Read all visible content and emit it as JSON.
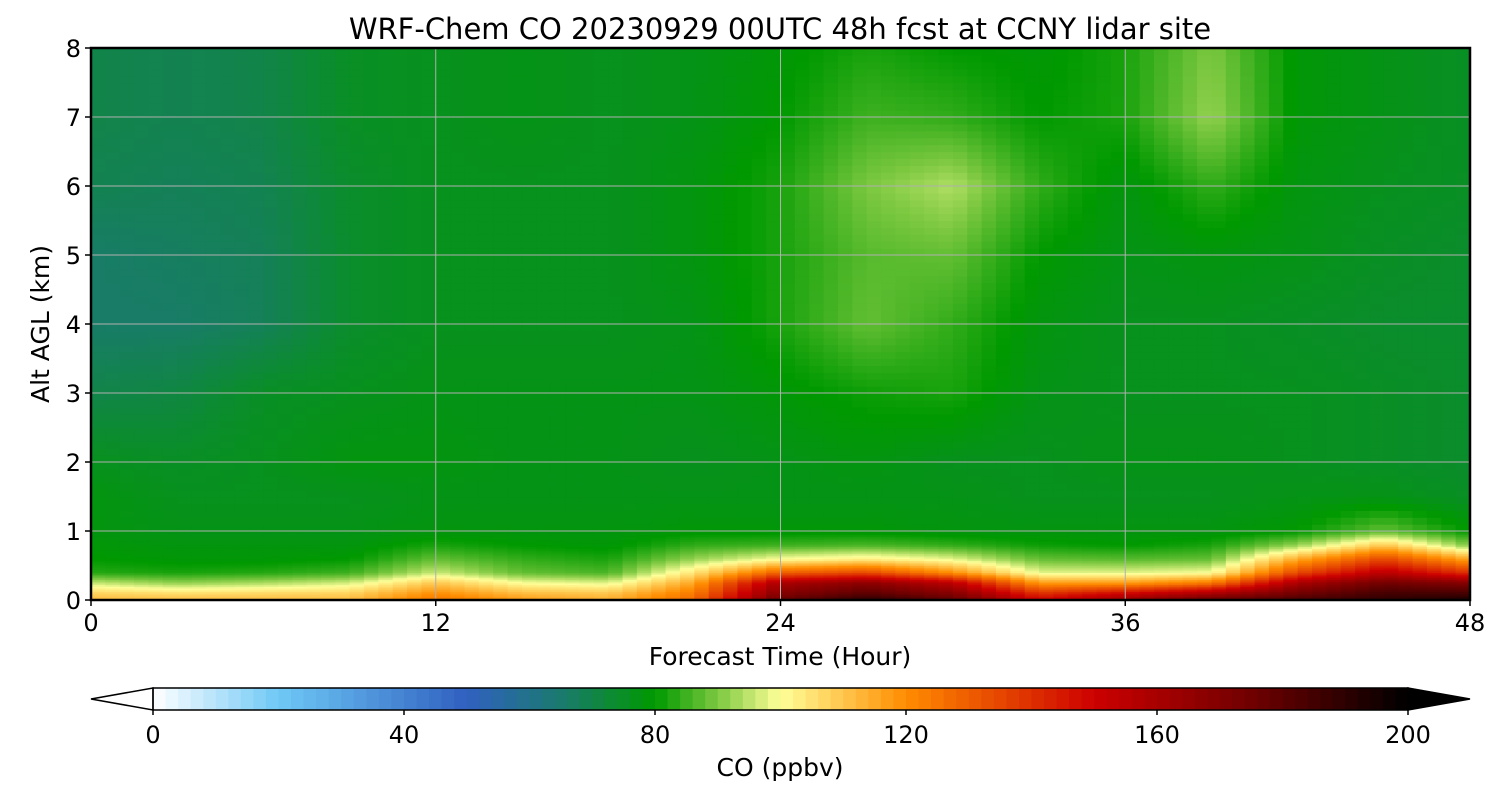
{
  "chart_data": {
    "type": "heatmap",
    "title": "WRF-Chem CO  20230929 00UTC 48h fcst at CCNY lidar site",
    "xlabel": "Forecast Time (Hour)",
    "ylabel": "Alt AGL (km)",
    "xlim": [
      0,
      48
    ],
    "ylim": [
      0,
      8
    ],
    "xticks": [
      "0",
      "12",
      "24",
      "36",
      "48"
    ],
    "yticks": [
      "0",
      "1",
      "2",
      "3",
      "4",
      "5",
      "6",
      "7",
      "8"
    ],
    "grid": true,
    "x": [
      0,
      3,
      6,
      9,
      12,
      15,
      18,
      21,
      24,
      27,
      30,
      33,
      36,
      39,
      42,
      45,
      48
    ],
    "y": [
      0,
      0.1,
      0.25,
      0.4,
      0.6,
      0.8,
      1.0,
      1.5,
      2,
      3,
      4,
      5,
      6,
      7,
      8
    ],
    "z": [
      [
        112,
        112,
        112,
        112,
        125,
        118,
        114,
        128,
        178,
        192,
        180,
        150,
        165,
        180,
        185,
        190,
        195
      ],
      [
        108,
        106,
        107,
        108,
        120,
        112,
        110,
        124,
        170,
        180,
        170,
        140,
        150,
        160,
        175,
        185,
        185
      ],
      [
        96,
        92,
        94,
        97,
        110,
        100,
        98,
        116,
        160,
        168,
        155,
        118,
        118,
        125,
        160,
        175,
        170
      ],
      [
        83,
        82,
        83,
        85,
        96,
        88,
        86,
        105,
        130,
        135,
        120,
        98,
        98,
        100,
        135,
        155,
        140
      ],
      [
        80,
        79,
        79,
        80,
        88,
        84,
        82,
        92,
        100,
        103,
        98,
        88,
        87,
        88,
        115,
        135,
        115
      ],
      [
        79,
        78,
        78,
        78,
        82,
        80,
        79,
        84,
        85,
        86,
        84,
        81,
        80,
        82,
        92,
        110,
        90
      ],
      [
        78,
        77,
        77,
        77,
        78,
        78,
        78,
        79,
        79,
        79,
        78,
        78,
        78,
        78,
        80,
        88,
        80
      ],
      [
        78,
        76,
        76,
        76,
        77,
        77,
        77,
        77,
        77,
        77,
        77,
        76,
        76,
        76,
        77,
        77,
        75
      ],
      [
        76,
        75,
        76,
        78,
        78,
        77,
        77,
        76,
        77,
        78,
        76,
        76,
        77,
        77,
        76,
        75,
        74
      ],
      [
        70,
        71,
        75,
        76,
        77,
        77,
        77,
        77,
        79,
        81,
        82,
        77,
        76,
        76,
        76,
        75,
        74
      ],
      [
        66,
        66,
        68,
        74,
        76,
        76,
        76,
        77,
        82,
        88,
        84,
        78,
        76,
        76,
        75,
        74,
        74
      ],
      [
        66,
        67,
        68,
        74,
        76,
        76,
        76,
        78,
        82,
        87,
        88,
        80,
        77,
        78,
        77,
        75,
        74
      ],
      [
        69,
        68,
        69,
        74,
        76,
        76,
        76,
        78,
        82,
        90,
        94,
        84,
        78,
        84,
        78,
        76,
        75
      ],
      [
        70,
        69,
        70,
        75,
        76,
        77,
        76,
        77,
        80,
        85,
        84,
        80,
        82,
        92,
        79,
        77,
        75
      ],
      [
        70,
        69,
        70,
        75,
        76,
        77,
        76,
        77,
        79,
        82,
        80,
        79,
        82,
        90,
        79,
        77,
        75
      ]
    ],
    "colorbar": {
      "label": "CO  (ppbv)",
      "ticks": [
        "0",
        "40",
        "80",
        "120",
        "160",
        "200"
      ],
      "range": [
        0,
        200
      ],
      "extend": "both",
      "stops": [
        [
          0,
          "#ffffff"
        ],
        [
          20,
          "#6ec8f5"
        ],
        [
          50,
          "#3060c0"
        ],
        [
          65,
          "#1a7a6e"
        ],
        [
          80,
          "#009900"
        ],
        [
          90,
          "#7cc840"
        ],
        [
          100,
          "#ffff99"
        ],
        [
          120,
          "#ff8c00"
        ],
        [
          150,
          "#cc0000"
        ],
        [
          175,
          "#700000"
        ],
        [
          200,
          "#000000"
        ]
      ]
    }
  }
}
